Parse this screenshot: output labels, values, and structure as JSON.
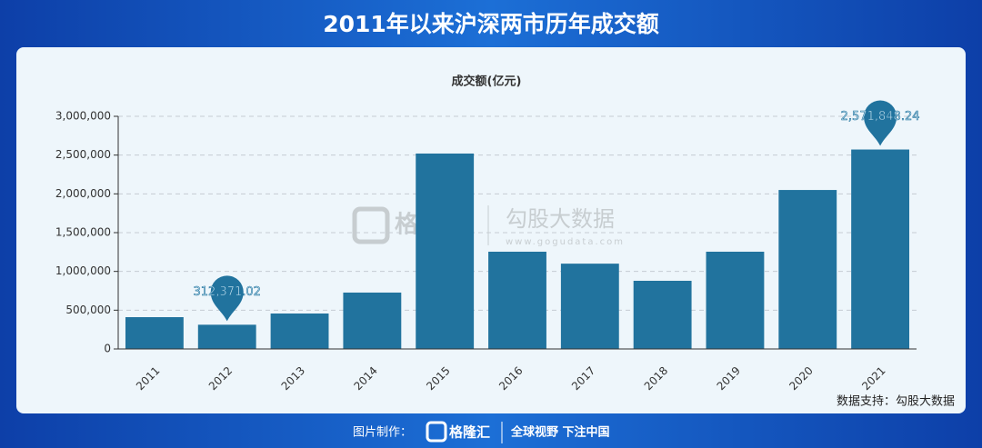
{
  "page": {
    "heading": "2011年以来沪深两市历年成交额",
    "source": "数据支持：勾股大数据",
    "footer_label": "图片制作：",
    "footer_brand": "格隆汇",
    "footer_slogan": "全球视野 下注中国",
    "watermark_left": "格隆汇",
    "watermark_right": "勾股大数据",
    "watermark_url": "www.gogudata.com"
  },
  "chart_data": {
    "type": "bar",
    "title": "成交额(亿元)",
    "categories": [
      "2011",
      "2012",
      "2013",
      "2014",
      "2015",
      "2016",
      "2017",
      "2018",
      "2019",
      "2020",
      "2021"
    ],
    "values": [
      410000,
      312371.02,
      457000,
      727000,
      2520000,
      1254000,
      1100000,
      879000,
      1254000,
      2050000,
      2571848.24
    ],
    "value_labels": [
      null,
      "312,371.02",
      null,
      null,
      null,
      null,
      null,
      null,
      null,
      null,
      "2,571,848.24"
    ],
    "color": "#21739e",
    "ylim": [
      0,
      3000000
    ],
    "yticks": [
      0,
      {
        "value": 500000,
        "label": "500,000"
      },
      {
        "value": 1000000,
        "label": "1,000,000"
      },
      {
        "value": 1500000,
        "label": "1,500,000"
      },
      {
        "value": 2000000,
        "label": "2,000,000"
      },
      {
        "value": 2500000,
        "label": "2,500,000"
      },
      {
        "value": 3000000,
        "label": "3,000,000"
      }
    ],
    "grid": true
  }
}
